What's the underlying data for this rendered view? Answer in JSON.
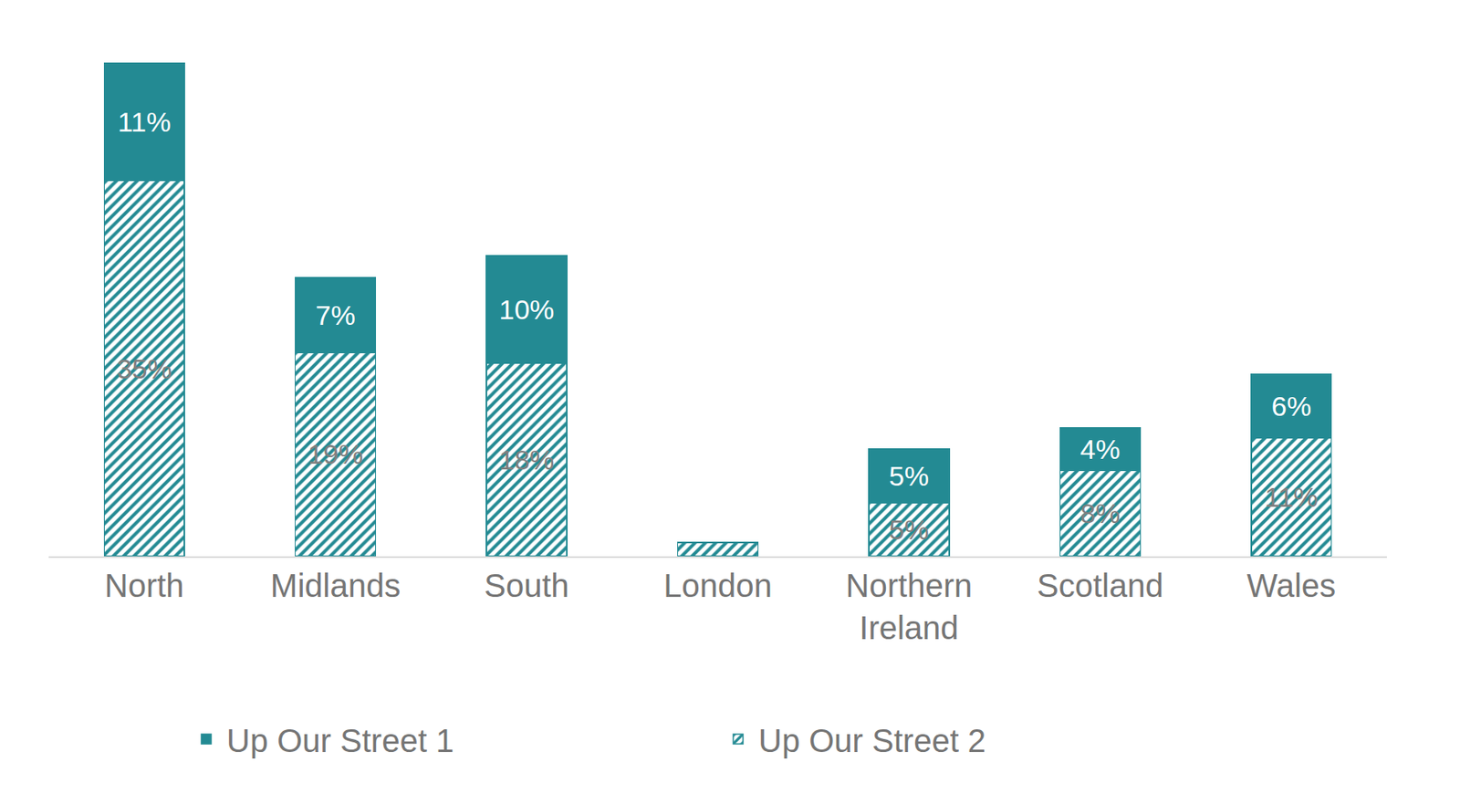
{
  "chart_data": {
    "type": "bar",
    "stacked": true,
    "categories": [
      "North",
      "Midlands",
      "South",
      "London",
      "Northern Ireland",
      "Scotland",
      "Wales"
    ],
    "series": [
      {
        "name": "Up Our Street 1",
        "color": "#238a93",
        "marker": "solid",
        "values": [
          11,
          7,
          10,
          0,
          5,
          4,
          6
        ],
        "value_labels": [
          "11%",
          "7%",
          "10%",
          null,
          "5%",
          "4%",
          "6%"
        ]
      },
      {
        "name": "Up Our Street 2",
        "color": "#238a93",
        "marker": "hatch",
        "values": [
          35,
          19,
          18,
          1.3,
          5,
          8,
          11
        ],
        "value_labels": [
          "35%",
          "19%",
          "18%",
          null,
          "5%",
          "8%",
          "11%"
        ]
      }
    ],
    "ylim": [
      0,
      46
    ],
    "yticks": [],
    "grid": false,
    "legend": "bottom",
    "data_labels": true,
    "tick_labels": "x"
  }
}
